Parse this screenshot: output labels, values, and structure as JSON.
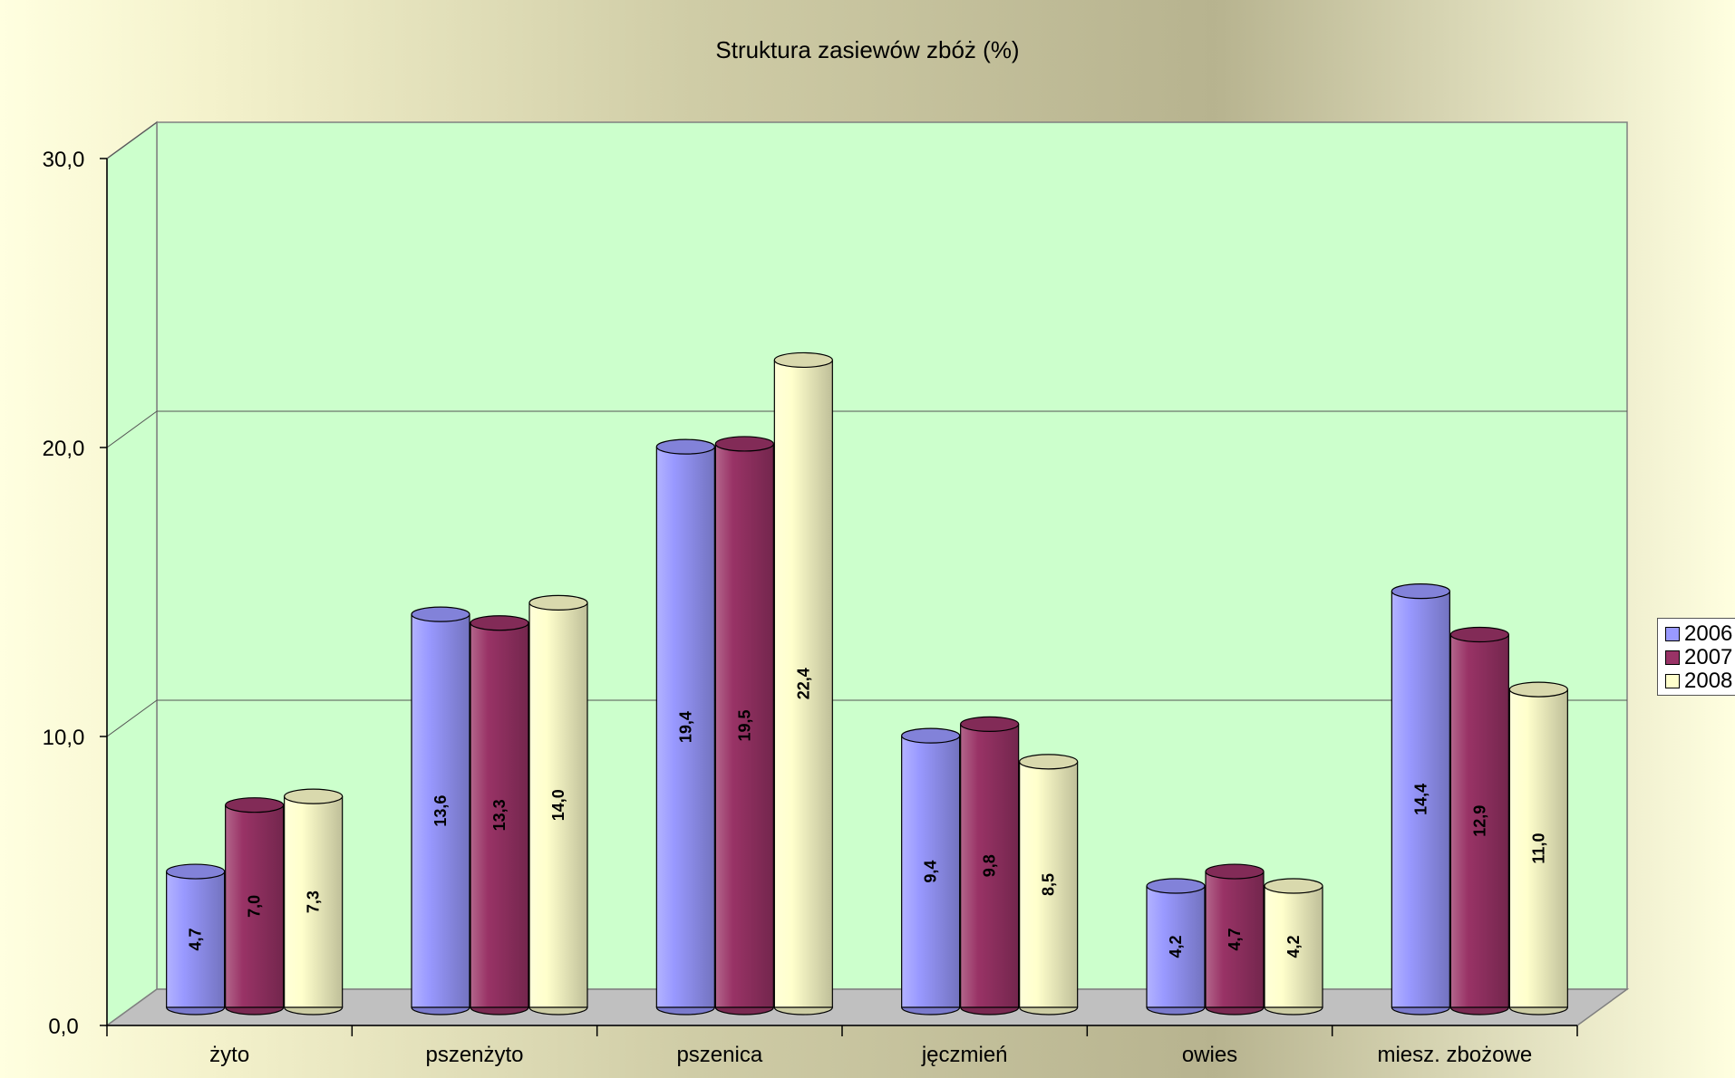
{
  "chart_data": {
    "type": "bar",
    "title": "Struktura zasiewów zbóż (%)",
    "xlabel": "",
    "ylabel": "",
    "ylim": [
      0,
      30
    ],
    "y_ticks": [
      "0,0",
      "10,0",
      "20,0",
      "30,0"
    ],
    "categories": [
      "żyto",
      "pszenżyto",
      "pszenica",
      "jęczmień",
      "owies",
      "miesz. zbożowe"
    ],
    "series": [
      {
        "name": "2006",
        "values": [
          4.7,
          13.6,
          19.4,
          9.4,
          4.2,
          14.4
        ],
        "labels": [
          "4,7",
          "13,6",
          "19,4",
          "9,4",
          "4,2",
          "14,4"
        ],
        "color": "#9999ff"
      },
      {
        "name": "2007",
        "values": [
          7.0,
          13.3,
          19.5,
          9.8,
          4.7,
          12.9
        ],
        "labels": [
          "7,0",
          "13,3",
          "19,5",
          "9,8",
          "4,7",
          "12,9"
        ],
        "color": "#993366"
      },
      {
        "name": "2008",
        "values": [
          7.3,
          14.0,
          22.4,
          8.5,
          4.2,
          11.0
        ],
        "labels": [
          "7,3",
          "14,0",
          "22,4",
          "8,5",
          "4,2",
          "11,0"
        ],
        "color": "#ffffcc"
      }
    ],
    "legend_position": "right",
    "grid": true,
    "plot_background": "#ccffcc",
    "floor_color": "#c0c0c0"
  }
}
